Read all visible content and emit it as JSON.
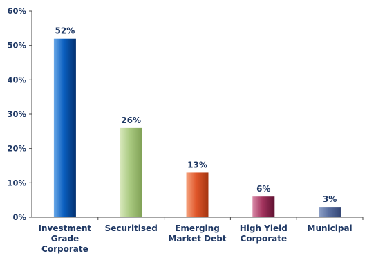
{
  "chart_data": {
    "type": "bar",
    "title": "",
    "xlabel": "",
    "ylabel": "",
    "ylim": [
      0,
      60
    ],
    "yticks": [
      "0%",
      "10%",
      "20%",
      "30%",
      "40%",
      "50%",
      "60%"
    ],
    "ytick_values": [
      0,
      10,
      20,
      30,
      40,
      50,
      60
    ],
    "grid": false,
    "legend": "none",
    "categories": [
      [
        "Investment",
        "Grade",
        "Corporate"
      ],
      [
        "Securitised"
      ],
      [
        "Emerging",
        "Market Debt"
      ],
      [
        "High Yield",
        "Corporate"
      ],
      [
        "Municipal"
      ]
    ],
    "values": [
      52,
      26,
      13,
      6,
      3
    ],
    "data_labels": [
      "52%",
      "26%",
      "13%",
      "6%",
      "3%"
    ],
    "bar_colors": [
      {
        "light": "#6aa8e8",
        "mid": "#0a5fc0",
        "dark": "#03306e"
      },
      {
        "light": "#d8e8bc",
        "mid": "#a9c980",
        "dark": "#7fa055"
      },
      {
        "light": "#f6a47f",
        "mid": "#e0562a",
        "dark": "#a33510"
      },
      {
        "light": "#d98aa8",
        "mid": "#a3345e",
        "dark": "#5e1030"
      },
      {
        "light": "#8fa2c8",
        "mid": "#5a6fa0",
        "dark": "#344674"
      }
    ],
    "axis_color": "#4a4a4a",
    "text_color": "#1f3864"
  }
}
